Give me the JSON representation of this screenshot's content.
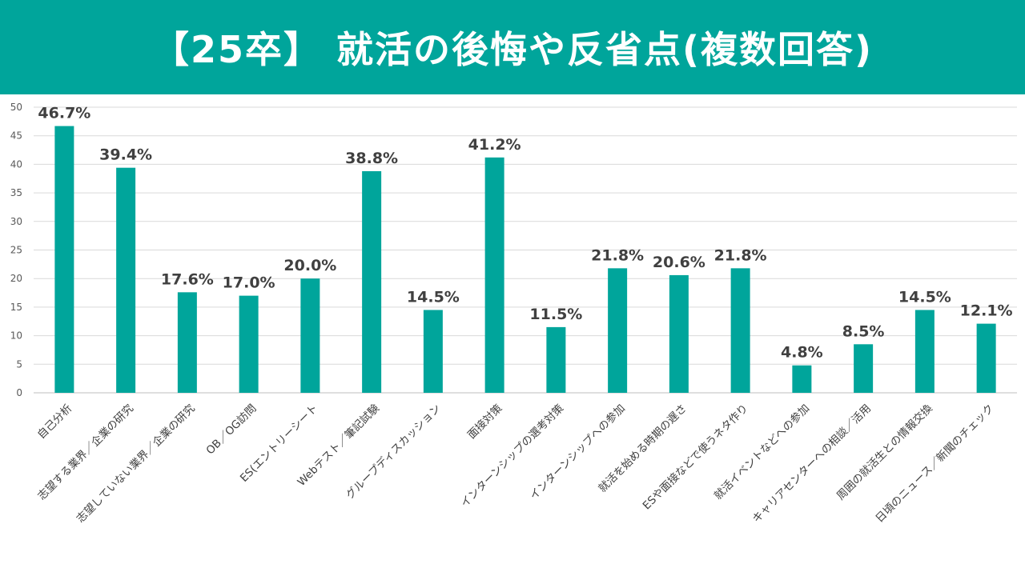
{
  "header": {
    "title": "【25卒】 就活の後悔や反省点(複数回答)"
  },
  "colors": {
    "header_bg": "#00a59b",
    "bar": "#00a59b",
    "grid": "#d9d9d9"
  },
  "chart_data": {
    "type": "bar",
    "title": "【25卒】 就活の後悔や反省点(複数回答)",
    "xlabel": "",
    "ylabel": "",
    "ylim": [
      0,
      50
    ],
    "yticks": [
      0,
      5,
      10,
      15,
      20,
      25,
      30,
      35,
      40,
      45,
      50
    ],
    "grid": true,
    "legend": "none",
    "categories": [
      "自己分析",
      "志望する業界／企業の研究",
      "志望していない業界／企業の研究",
      "OB／OG訪問",
      "ES(エントリーシート",
      "Webテスト／筆記試験",
      "グループディスカッション",
      "面接対策",
      "インターンシップの選考対策",
      "インターンシップへの参加",
      "就活を始める時期の遅さ",
      "ESや面接などで使うネタ作り",
      "就活イベントなどへの参加",
      "キャリアセンターへの相談／活用",
      "周囲の就活生との情報交換",
      "日頃のニュース／新聞のチェック"
    ],
    "values": [
      46.7,
      39.4,
      17.6,
      17.0,
      20.0,
      38.8,
      14.5,
      41.2,
      11.5,
      21.8,
      20.6,
      21.8,
      4.8,
      8.5,
      14.5,
      12.1
    ],
    "data_labels": [
      "46.7%",
      "39.4%",
      "17.6%",
      "17.0%",
      "20.0%",
      "38.8%",
      "14.5%",
      "41.2%",
      "11.5%",
      "21.8%",
      "20.6%",
      "21.8%",
      "4.8%",
      "8.5%",
      "14.5%",
      "12.1%"
    ]
  }
}
